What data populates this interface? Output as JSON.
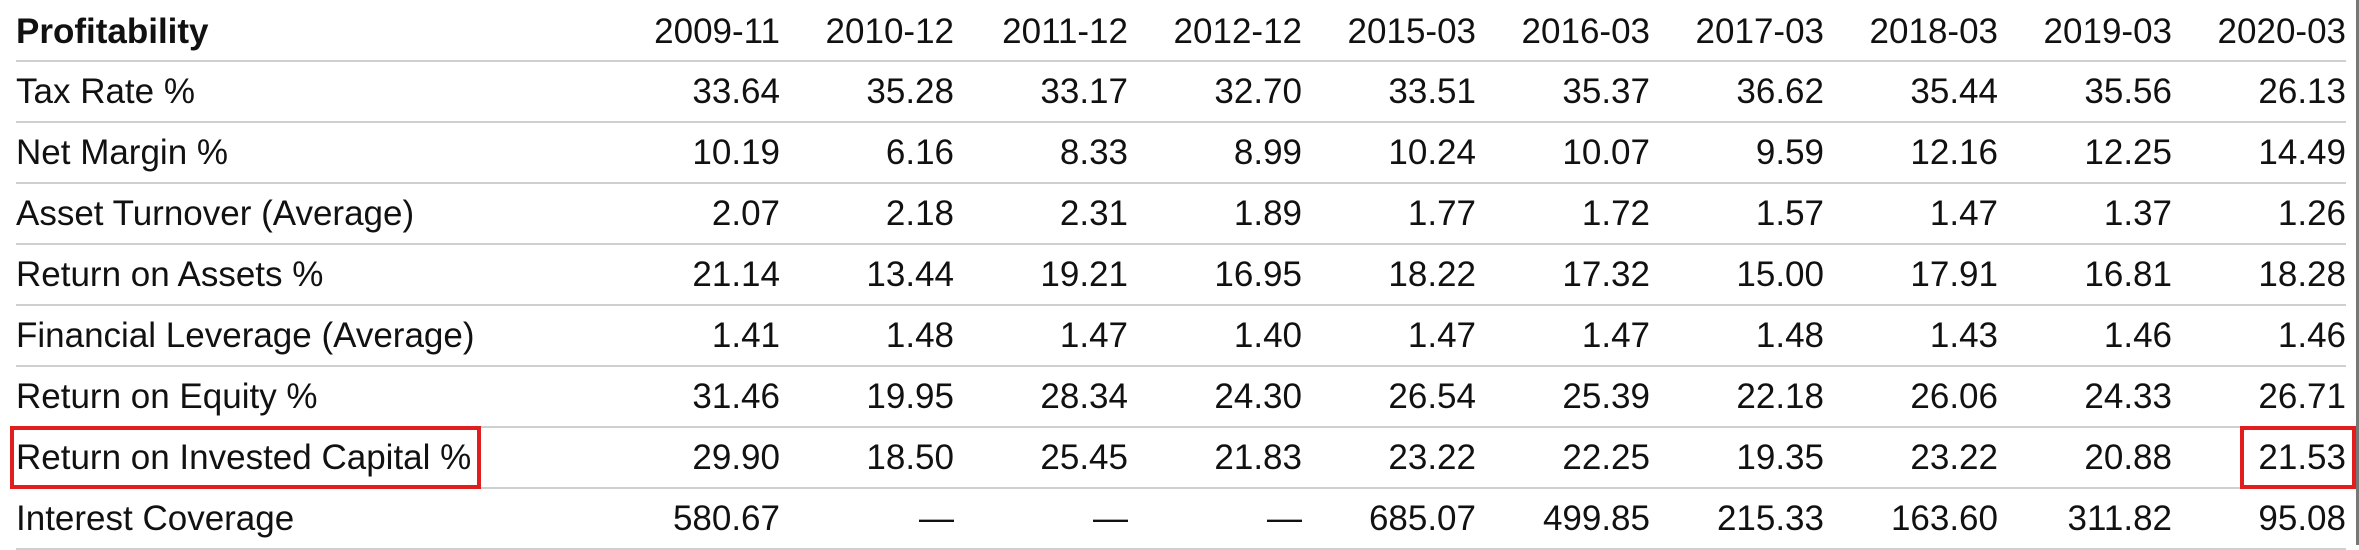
{
  "table": {
    "title": "Profitability",
    "columns": [
      "2009-11",
      "2010-12",
      "2011-12",
      "2012-12",
      "2015-03",
      "2016-03",
      "2017-03",
      "2018-03",
      "2019-03",
      "2020-03"
    ],
    "rows": [
      {
        "label": "Tax Rate %",
        "values": [
          "33.64",
          "35.28",
          "33.17",
          "32.70",
          "33.51",
          "35.37",
          "36.62",
          "35.44",
          "35.56",
          "26.13"
        ]
      },
      {
        "label": "Net Margin %",
        "values": [
          "10.19",
          "6.16",
          "8.33",
          "8.99",
          "10.24",
          "10.07",
          "9.59",
          "12.16",
          "12.25",
          "14.49"
        ]
      },
      {
        "label": "Asset Turnover (Average)",
        "values": [
          "2.07",
          "2.18",
          "2.31",
          "1.89",
          "1.77",
          "1.72",
          "1.57",
          "1.47",
          "1.37",
          "1.26"
        ]
      },
      {
        "label": "Return on Assets %",
        "values": [
          "21.14",
          "13.44",
          "19.21",
          "16.95",
          "18.22",
          "17.32",
          "15.00",
          "17.91",
          "16.81",
          "18.28"
        ]
      },
      {
        "label": "Financial Leverage (Average)",
        "values": [
          "1.41",
          "1.48",
          "1.47",
          "1.40",
          "1.47",
          "1.47",
          "1.48",
          "1.43",
          "1.46",
          "1.46"
        ]
      },
      {
        "label": "Return on Equity %",
        "values": [
          "31.46",
          "19.95",
          "28.34",
          "24.30",
          "26.54",
          "25.39",
          "22.18",
          "26.06",
          "24.33",
          "26.71"
        ]
      },
      {
        "label": "Return on Invested Capital %",
        "values": [
          "29.90",
          "18.50",
          "25.45",
          "21.83",
          "23.22",
          "22.25",
          "19.35",
          "23.22",
          "20.88",
          "21.53"
        ]
      },
      {
        "label": "Interest Coverage",
        "values": [
          "580.67",
          "—",
          "—",
          "—",
          "685.07",
          "499.85",
          "215.33",
          "163.60",
          "311.82",
          "95.08"
        ]
      }
    ]
  },
  "highlight_color": "#e01e1e"
}
